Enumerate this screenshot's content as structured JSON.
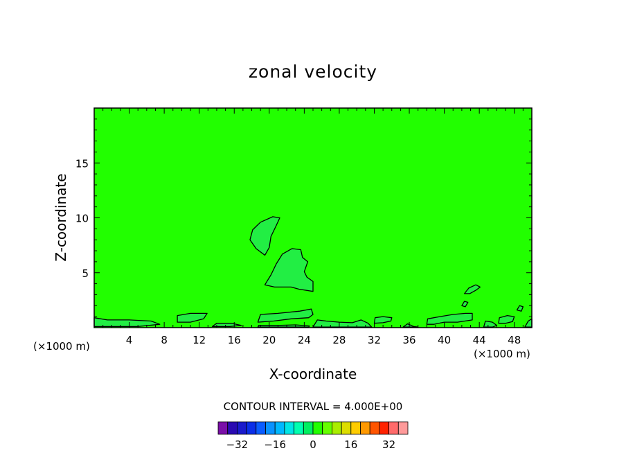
{
  "chart_data": {
    "type": "contour",
    "title": "zonal velocity",
    "xlabel": "X-coordinate",
    "ylabel": "Z-coordinate",
    "x_unit_label": "(×1000 m)",
    "y_unit_label": "(×1000 m)",
    "xlim": [
      0,
      50
    ],
    "ylim": [
      0,
      20
    ],
    "x_ticks": [
      4,
      8,
      12,
      16,
      20,
      24,
      28,
      32,
      36,
      40,
      44,
      48
    ],
    "y_ticks": [
      5,
      10,
      15
    ],
    "background_value": 0,
    "background_color": "#22ff00",
    "contour_interval_text": "CONTOUR INTERVAL = 4.000E+00",
    "contour_interval": 4.0,
    "regions": [
      {
        "name": "upper-lobe",
        "level": 4,
        "color": "#22ee44",
        "points": [
          [
            19.5,
            6.6
          ],
          [
            18.5,
            7.2
          ],
          [
            17.8,
            8.0
          ],
          [
            18.1,
            8.9
          ],
          [
            19.0,
            9.6
          ],
          [
            20.4,
            10.1
          ],
          [
            21.2,
            10.0
          ],
          [
            20.8,
            9.3
          ],
          [
            20.2,
            8.3
          ],
          [
            20.0,
            7.3
          ]
        ]
      },
      {
        "name": "lower-lobe",
        "level": 4,
        "color": "#22ee44",
        "points": [
          [
            19.5,
            3.9
          ],
          [
            20.2,
            4.8
          ],
          [
            20.8,
            5.8
          ],
          [
            21.5,
            6.7
          ],
          [
            22.6,
            7.2
          ],
          [
            23.6,
            7.1
          ],
          [
            23.8,
            6.4
          ],
          [
            24.4,
            6.0
          ],
          [
            24.0,
            5.1
          ],
          [
            24.3,
            4.6
          ],
          [
            25.0,
            4.2
          ],
          [
            25.0,
            3.3
          ],
          [
            23.4,
            3.5
          ],
          [
            22.5,
            3.7
          ],
          [
            20.6,
            3.7
          ]
        ]
      },
      {
        "name": "surface-1",
        "level": 4,
        "color": "#22ee44",
        "points": [
          [
            0,
            0.1
          ],
          [
            0,
            0.9
          ],
          [
            1.5,
            0.7
          ],
          [
            4.0,
            0.7
          ],
          [
            6.5,
            0.6
          ],
          [
            7.5,
            0.3
          ],
          [
            5.0,
            0.1
          ]
        ]
      },
      {
        "name": "surface-2",
        "level": 4,
        "color": "#22ee44",
        "points": [
          [
            9.5,
            0.5
          ],
          [
            9.5,
            1.1
          ],
          [
            11,
            1.3
          ],
          [
            12.9,
            1.3
          ],
          [
            12.5,
            0.8
          ],
          [
            11,
            0.5
          ]
        ]
      },
      {
        "name": "surface-3",
        "level": 4,
        "color": "#22ee44",
        "points": [
          [
            13.5,
            0.1
          ],
          [
            14.0,
            0.4
          ],
          [
            15.7,
            0.4
          ],
          [
            16.8,
            0.2
          ],
          [
            15.5,
            0.1
          ]
        ]
      },
      {
        "name": "surface-4",
        "level": 4,
        "color": "#22ee44",
        "points": [
          [
            18.7,
            0.5
          ],
          [
            19.0,
            1.2
          ],
          [
            21,
            1.3
          ],
          [
            23.5,
            1.5
          ],
          [
            24.8,
            1.7
          ],
          [
            25.0,
            1.2
          ],
          [
            24.5,
            0.9
          ],
          [
            22.5,
            0.8
          ],
          [
            20.5,
            0.6
          ]
        ]
      },
      {
        "name": "surface-5",
        "level": 4,
        "color": "#22ee44",
        "points": [
          [
            18.7,
            0.05
          ],
          [
            18.8,
            0.2
          ],
          [
            21,
            0.2
          ],
          [
            23,
            0.25
          ],
          [
            24.6,
            0.15
          ],
          [
            24.5,
            0.05
          ]
        ]
      },
      {
        "name": "surface-6",
        "level": 4,
        "color": "#22ee44",
        "points": [
          [
            25.0,
            0.05
          ],
          [
            25.5,
            0.7
          ],
          [
            26.5,
            0.6
          ],
          [
            28.0,
            0.5
          ],
          [
            29.5,
            0.45
          ],
          [
            30.5,
            0.7
          ],
          [
            31.3,
            0.4
          ],
          [
            31.7,
            0.05
          ]
        ]
      },
      {
        "name": "surface-7",
        "level": 4,
        "color": "#22ee44",
        "points": [
          [
            32.0,
            0.4
          ],
          [
            32.1,
            0.9
          ],
          [
            33,
            1.0
          ],
          [
            34.0,
            0.9
          ],
          [
            33.9,
            0.6
          ],
          [
            33,
            0.45
          ]
        ]
      },
      {
        "name": "surface-8",
        "level": 4,
        "color": "#22ee44",
        "points": [
          [
            35.3,
            0.05
          ],
          [
            35.8,
            0.35
          ],
          [
            36.5,
            0.1
          ],
          [
            37.0,
            0.05
          ]
        ]
      },
      {
        "name": "surface-9",
        "level": 4,
        "color": "#22ee44",
        "points": [
          [
            38.0,
            0.3
          ],
          [
            38.1,
            0.8
          ],
          [
            39.5,
            1.0
          ],
          [
            41,
            1.2
          ],
          [
            42.4,
            1.3
          ],
          [
            43.2,
            1.3
          ],
          [
            43.2,
            0.7
          ],
          [
            41.5,
            0.5
          ],
          [
            40.0,
            0.5
          ],
          [
            38.8,
            0.3
          ]
        ]
      },
      {
        "name": "surface-10",
        "level": 4,
        "color": "#22ee44",
        "points": [
          [
            44.5,
            0.05
          ],
          [
            44.7,
            0.6
          ],
          [
            45.5,
            0.5
          ],
          [
            46.0,
            0.2
          ],
          [
            45.5,
            0.05
          ]
        ]
      },
      {
        "name": "surface-11",
        "level": 4,
        "color": "#22ee44",
        "points": [
          [
            46.2,
            0.4
          ],
          [
            46.3,
            0.9
          ],
          [
            47.2,
            1.1
          ],
          [
            48.0,
            1.0
          ],
          [
            47.8,
            0.55
          ],
          [
            47.0,
            0.4
          ]
        ]
      },
      {
        "name": "blob-a",
        "level": 4,
        "color": "#22ee44",
        "points": [
          [
            42.3,
            3.1
          ],
          [
            42.8,
            3.6
          ],
          [
            43.6,
            3.9
          ],
          [
            44.1,
            3.7
          ],
          [
            43.6,
            3.4
          ],
          [
            42.9,
            3.1
          ]
        ]
      },
      {
        "name": "blob-b",
        "level": 4,
        "color": "#22ee44",
        "points": [
          [
            42.0,
            2.0
          ],
          [
            42.3,
            2.4
          ],
          [
            42.7,
            2.3
          ],
          [
            42.4,
            1.9
          ]
        ]
      },
      {
        "name": "blob-c",
        "level": 4,
        "color": "#22ee44",
        "points": [
          [
            48.3,
            1.6
          ],
          [
            48.6,
            2.0
          ],
          [
            49.0,
            1.9
          ],
          [
            48.8,
            1.5
          ]
        ]
      },
      {
        "name": "corner-right",
        "level": 4,
        "color": "#22ee44",
        "points": [
          [
            49.2,
            0.05
          ],
          [
            49.6,
            0.6
          ],
          [
            50,
            0.8
          ],
          [
            50,
            0.05
          ]
        ]
      }
    ],
    "colorbar": {
      "levels": [
        -36,
        -32,
        -28,
        -24,
        -20,
        -16,
        -12,
        -8,
        -4,
        0,
        4,
        8,
        12,
        16,
        20,
        24,
        28,
        32,
        36
      ],
      "tick_labels": [
        "-32",
        "-16",
        "0",
        "16",
        "32"
      ],
      "tick_values": [
        -32,
        -16,
        0,
        16,
        32
      ],
      "colors": [
        "#7a0fa8",
        "#2a0ab2",
        "#1a1acc",
        "#0a2ee8",
        "#0a5cff",
        "#0a92ff",
        "#00b8ff",
        "#00e6e6",
        "#00ffb0",
        "#00f060",
        "#22ff00",
        "#66ff00",
        "#aaee00",
        "#dddd00",
        "#ffcc00",
        "#ff9900",
        "#ff5500",
        "#ff2200",
        "#ff6a6a",
        "#ff9a9a"
      ]
    }
  }
}
